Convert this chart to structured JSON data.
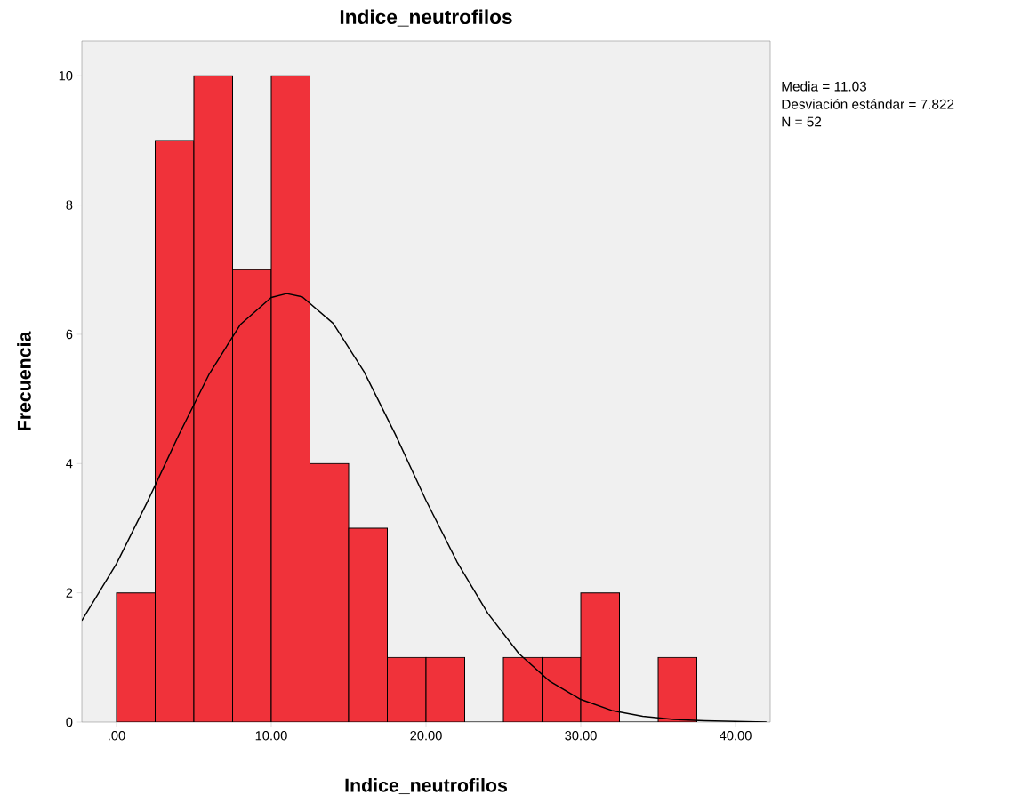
{
  "chart_data": {
    "type": "histogram",
    "title": "Indice_neutrofilos",
    "xlabel": "Indice_neutrofilos",
    "ylabel": "Frecuencia",
    "bins": [
      0,
      2.5,
      5,
      7.5,
      10,
      12.5,
      15,
      17.5,
      20,
      22.5,
      25,
      27.5,
      30,
      32.5,
      35,
      37.5
    ],
    "values": [
      2,
      9,
      10,
      7,
      10,
      4,
      3,
      1,
      1,
      0,
      1,
      1,
      2,
      0,
      1
    ],
    "color": "#f0323a",
    "series": [
      {
        "type": "line",
        "color": "#000000",
        "x": [
          -2.24,
          0,
          2,
          4,
          6,
          8,
          10,
          11,
          12,
          14,
          16,
          18,
          20,
          22,
          24,
          26,
          28,
          30,
          32,
          34,
          36,
          38,
          40,
          42
        ],
        "values": [
          1.57,
          2.45,
          3.41,
          4.43,
          5.39,
          6.15,
          6.57,
          6.63,
          6.58,
          6.17,
          5.42,
          4.46,
          3.43,
          2.48,
          1.68,
          1.06,
          0.63,
          0.35,
          0.18,
          0.09,
          0.04,
          0.02,
          0.01,
          0.0
        ]
      }
    ],
    "xlim": [
      -2.24,
      42.24
    ],
    "ylim": [
      0,
      10.54
    ],
    "xticks": [
      {
        "value": 0,
        "label": ".00"
      },
      {
        "value": 10,
        "label": "10.00"
      },
      {
        "value": 20,
        "label": "20.00"
      },
      {
        "value": 30,
        "label": "30.00"
      },
      {
        "value": 40,
        "label": "40.00"
      }
    ],
    "yticks": [
      0,
      2,
      4,
      6,
      8,
      10
    ],
    "annotations": [
      "Media = 11.03",
      "Desviación estándar = 7.822",
      "N = 52"
    ]
  }
}
